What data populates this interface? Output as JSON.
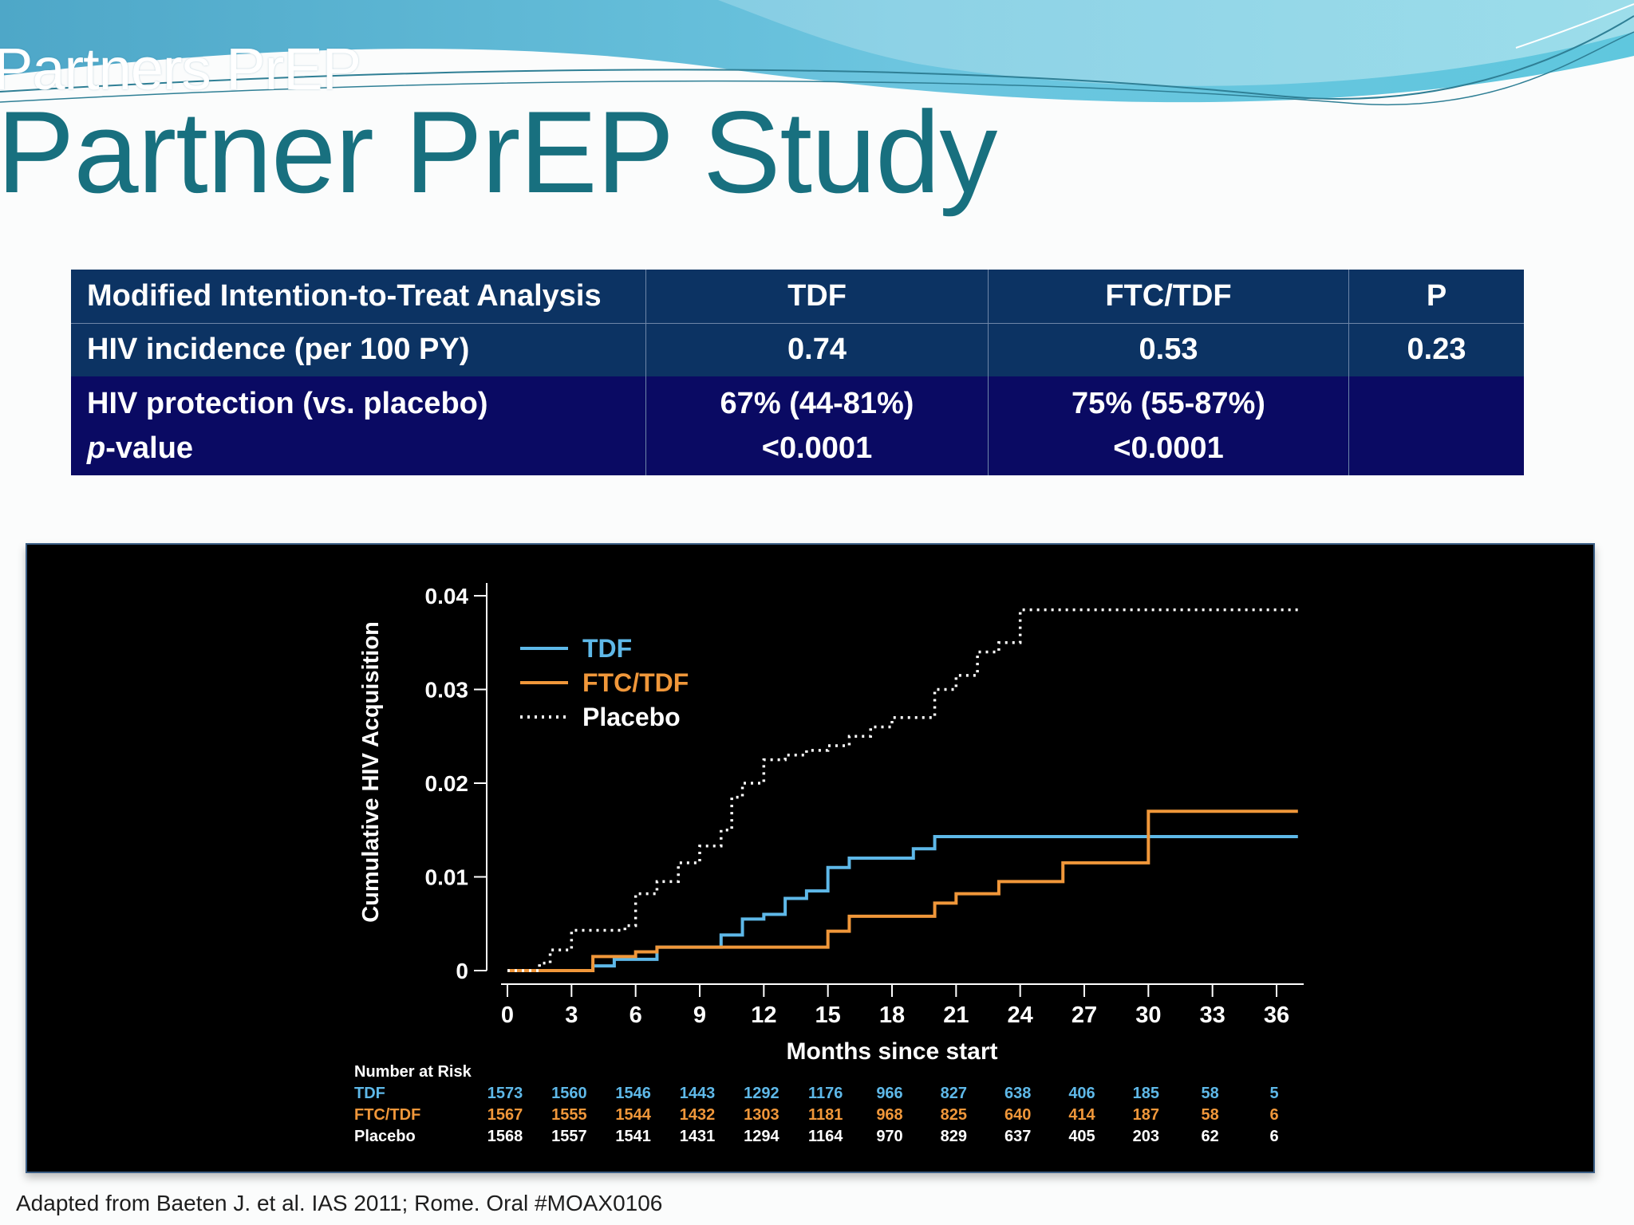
{
  "slide": {
    "header_fragment": "Partners PrEP",
    "title": "Partner PrEP Study",
    "footnote": "Adapted from Baeten J. et al. IAS 2011; Rome. Oral #MOAX0106"
  },
  "table": {
    "headers": [
      "Modified Intention-to-Treat Analysis",
      "TDF",
      "FTC/TDF",
      "P"
    ],
    "row1": [
      "HIV incidence (per 100 PY)",
      "0.74",
      "0.53",
      "0.23"
    ],
    "row2": {
      "label": "HIV protection (vs. placebo)",
      "label2_italic": "p",
      "label2_rest": "-value",
      "tdf": [
        "67% (44-81%)",
        "<0.0001"
      ],
      "ftc": [
        "75% (55-87%)",
        "<0.0001"
      ],
      "p": ""
    }
  },
  "colors": {
    "title": "#18707f",
    "table_header_bg": "#0c3363",
    "table_row_bg": "#0a0a63",
    "tdf": "#5eb8e8",
    "ftc_tdf": "#f0973a",
    "placebo": "#ffffff"
  },
  "chart_data": {
    "type": "line",
    "step": true,
    "xlabel": "Months since start",
    "ylabel": "Cumulative HIV Acquisition",
    "xlim": [
      0,
      36
    ],
    "ylim": [
      0,
      0.04
    ],
    "xticks": [
      0,
      3,
      6,
      9,
      12,
      15,
      18,
      21,
      24,
      27,
      30,
      33,
      36
    ],
    "yticks": [
      0,
      0.01,
      0.02,
      0.03,
      0.04
    ],
    "ytick_labels": [
      "0",
      "0.01",
      "0.02",
      "0.03",
      "0.04"
    ],
    "legend_position": "top-left",
    "grid": false,
    "series": [
      {
        "name": "TDF",
        "color": "#5eb8e8",
        "dash": "solid",
        "x": [
          0,
          4,
          5,
          7,
          10,
          11,
          12,
          13,
          14,
          15,
          16,
          19,
          20,
          37
        ],
        "y": [
          0,
          0.0005,
          0.0012,
          0.0025,
          0.0038,
          0.0055,
          0.006,
          0.0077,
          0.0085,
          0.011,
          0.012,
          0.013,
          0.0143,
          0.0143
        ]
      },
      {
        "name": "FTC/TDF",
        "color": "#f0973a",
        "dash": "solid",
        "x": [
          0,
          4,
          6,
          7,
          15,
          16,
          20,
          21,
          23,
          26,
          30,
          37
        ],
        "y": [
          0,
          0.0015,
          0.002,
          0.0025,
          0.0042,
          0.0058,
          0.0072,
          0.0082,
          0.0095,
          0.0115,
          0.017,
          0.017
        ]
      },
      {
        "name": "Placebo",
        "color": "#ffffff",
        "dash": "dotted",
        "x": [
          0,
          1.5,
          2,
          3,
          5.5,
          6,
          7,
          8,
          9,
          10,
          10.5,
          11,
          12,
          13,
          14,
          15,
          16,
          17,
          18,
          20,
          21,
          22,
          23,
          24,
          37
        ],
        "y": [
          0,
          0.0008,
          0.0022,
          0.0043,
          0.0048,
          0.0082,
          0.0095,
          0.0115,
          0.0133,
          0.015,
          0.0185,
          0.02,
          0.0225,
          0.023,
          0.0235,
          0.024,
          0.025,
          0.026,
          0.027,
          0.03,
          0.0315,
          0.034,
          0.035,
          0.0385,
          0.0385
        ]
      }
    ],
    "risk_table": {
      "title": "Number at Risk",
      "rows": [
        {
          "name": "TDF",
          "color": "#5eb8e8",
          "values": [
            "1573",
            "1560",
            "1546",
            "1443",
            "1292",
            "1176",
            "966",
            "827",
            "638",
            "406",
            "185",
            "58",
            "5"
          ]
        },
        {
          "name": "FTC/TDF",
          "color": "#f0973a",
          "values": [
            "1567",
            "1555",
            "1544",
            "1432",
            "1303",
            "1181",
            "968",
            "825",
            "640",
            "414",
            "187",
            "58",
            "6"
          ]
        },
        {
          "name": "Placebo",
          "color": "#ffffff",
          "values": [
            "1568",
            "1557",
            "1541",
            "1431",
            "1294",
            "1164",
            "970",
            "829",
            "637",
            "405",
            "203",
            "62",
            "6"
          ]
        }
      ]
    }
  }
}
